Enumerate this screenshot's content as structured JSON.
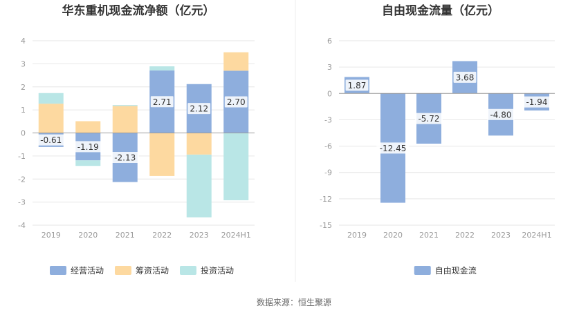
{
  "footer": {
    "source": "数据来源：恒生聚源"
  },
  "chart_data": [
    {
      "type": "bar",
      "stacked": true,
      "title": "华东重机现金流净额（亿元）",
      "categories": [
        "2019",
        "2020",
        "2021",
        "2022",
        "2023",
        "2024H1"
      ],
      "ylim": [
        -4,
        4
      ],
      "yticks": [
        -4,
        -3,
        -2,
        -1,
        0,
        1,
        2,
        3,
        4
      ],
      "grid": true,
      "legend_position": "bottom",
      "series": [
        {
          "name": "经营活动",
          "color": "#8eaedd",
          "values": [
            -0.61,
            -1.19,
            -2.13,
            2.71,
            2.12,
            2.7
          ],
          "labels": [
            "-0.61",
            "-1.19",
            "-2.13",
            "2.71",
            "2.12",
            "2.70"
          ]
        },
        {
          "name": "筹资活动",
          "color": "#fdd9a0",
          "values": [
            1.27,
            0.51,
            1.17,
            -1.87,
            -0.94,
            0.8
          ]
        },
        {
          "name": "投资活动",
          "color": "#b9e6e6",
          "values": [
            0.46,
            -0.24,
            0.04,
            0.18,
            -2.72,
            -2.92
          ]
        }
      ]
    },
    {
      "type": "bar",
      "title": "自由现金流量（亿元）",
      "categories": [
        "2019",
        "2020",
        "2021",
        "2022",
        "2023",
        "2024H1"
      ],
      "ylim": [
        -15,
        6
      ],
      "yticks": [
        -15,
        -12,
        -9,
        -6,
        -3,
        0,
        3,
        6
      ],
      "grid": true,
      "legend_position": "bottom",
      "series": [
        {
          "name": "自由现金流",
          "color": "#8eaedd",
          "values": [
            1.87,
            -12.45,
            -5.72,
            3.68,
            -4.8,
            -1.94
          ],
          "labels": [
            "1.87",
            "-12.45",
            "-5.72",
            "3.68",
            "-4.80",
            "-1.94"
          ]
        }
      ]
    }
  ]
}
